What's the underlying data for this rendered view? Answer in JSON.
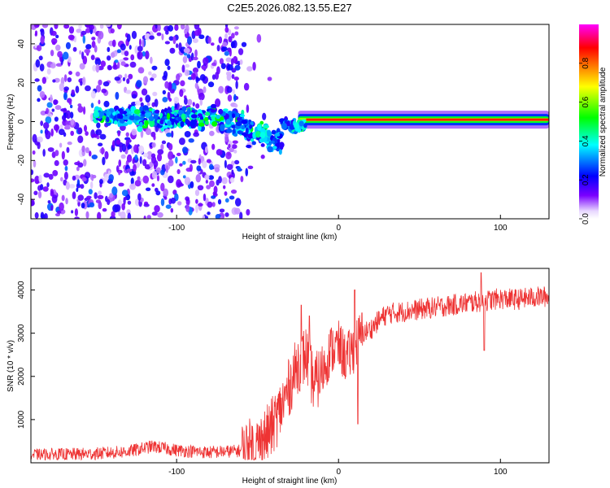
{
  "title": "C2E5.2026.082.13.55.E27",
  "chart_data": [
    {
      "type": "heatmap",
      "name": "spectrogram",
      "xlabel": "Height of straight line (km)",
      "ylabel": "Frequency (Hz)",
      "xlim": [
        -190,
        130
      ],
      "ylim": [
        -50,
        50
      ],
      "xticks": [
        -100,
        0,
        100
      ],
      "xtick_labels": [
        "-100",
        "0",
        "100"
      ],
      "yticks": [
        -40,
        -20,
        0,
        20,
        40
      ],
      "ytick_labels": [
        "-40",
        "-20",
        "0",
        "20",
        "40"
      ],
      "grid": false,
      "colorbar": {
        "label": "Normalized spectral amplitude",
        "range": [
          0,
          1
        ],
        "ticks": [
          0,
          0.2,
          0.4,
          0.6,
          0.8
        ],
        "tick_labels": [
          "0.0",
          "0.2",
          "0.4",
          "0.6",
          "0.8"
        ],
        "stops": [
          "#ffffff",
          "#e8d8ff",
          "#7a00ff",
          "#0000ff",
          "#00ffff",
          "#00ff00",
          "#ffff00",
          "#ff8000",
          "#ff0000",
          "#ff00ff"
        ]
      },
      "features": [
        {
          "region": "scattered noise",
          "x_range": [
            -190,
            -60
          ],
          "y_range": [
            -50,
            50
          ],
          "amplitude": "0.05-0.3"
        },
        {
          "region": "signal band",
          "x_range": [
            -150,
            -20
          ],
          "y_center": [
            3,
            -15
          ],
          "amplitude": "0.2-0.5"
        },
        {
          "region": "steady carrier",
          "x_range": [
            -20,
            130
          ],
          "y_center": 1,
          "amplitude": "0.4-0.9"
        }
      ]
    },
    {
      "type": "line",
      "name": "snr",
      "xlabel": "Height of straight line (km)",
      "ylabel": "SNR (10 * v/v)",
      "xlim": [
        -190,
        130
      ],
      "ylim": [
        0,
        4500
      ],
      "xticks": [
        -100,
        0,
        100
      ],
      "xtick_labels": [
        "-100",
        "0",
        "100"
      ],
      "yticks": [
        1000,
        2000,
        3000,
        4000
      ],
      "ytick_labels": [
        "1000",
        "2000",
        "3000",
        "4000"
      ],
      "color": "#ee3333",
      "grid": false,
      "series": [
        {
          "name": "SNR",
          "x": [
            -190,
            -170,
            -150,
            -130,
            -115,
            -100,
            -80,
            -60,
            -50,
            -45,
            -40,
            -35,
            -30,
            -25,
            -20,
            -15,
            -10,
            -5,
            0,
            5,
            10,
            15,
            20,
            25,
            30,
            40,
            50,
            60,
            70,
            80,
            90,
            100,
            110,
            120,
            130
          ],
          "y": [
            180,
            190,
            210,
            260,
            380,
            290,
            240,
            280,
            400,
            600,
            900,
            1300,
            1800,
            2300,
            2500,
            1800,
            2100,
            2600,
            2700,
            2400,
            2700,
            3000,
            3100,
            3300,
            3450,
            3500,
            3550,
            3600,
            3650,
            3700,
            3750,
            3800,
            3780,
            3830,
            3850
          ]
        }
      ],
      "spikes": [
        {
          "x": -23,
          "y": 3650
        },
        {
          "x": -18,
          "y": 3400
        },
        {
          "x": 10,
          "y": 4000
        },
        {
          "x": 12,
          "y": 900
        },
        {
          "x": 88,
          "y": 4400
        },
        {
          "x": 90,
          "y": 2600
        }
      ],
      "noise_amplitude": [
        {
          "x_range": [
            -190,
            -60
          ],
          "amp": 150
        },
        {
          "x_range": [
            -60,
            -10
          ],
          "amp": 700
        },
        {
          "x_range": [
            -10,
            15
          ],
          "amp": 600
        },
        {
          "x_range": [
            15,
            130
          ],
          "amp": 250
        }
      ]
    }
  ]
}
